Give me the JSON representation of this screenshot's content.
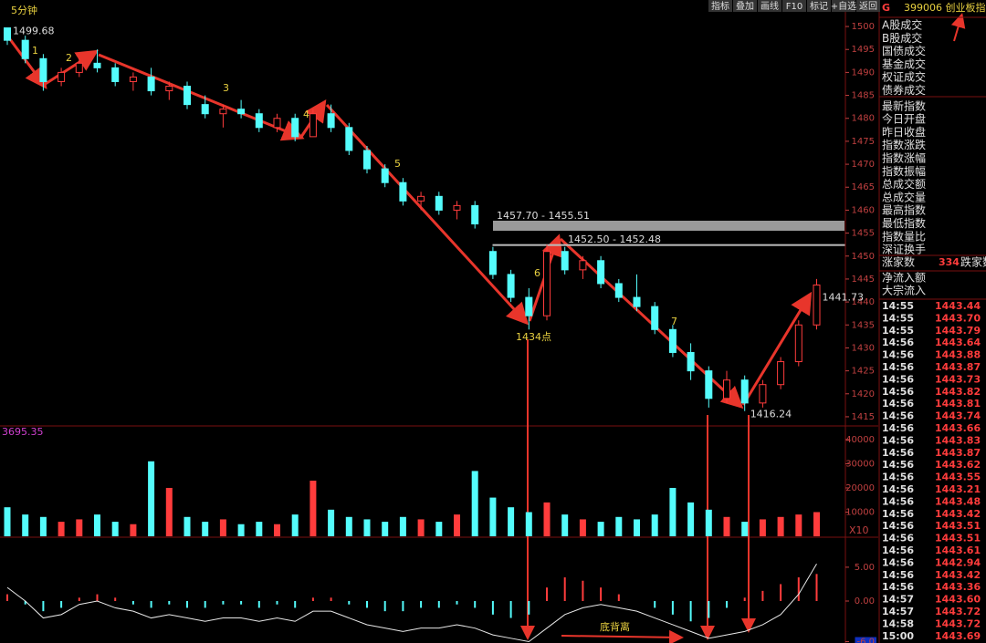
{
  "toolbar": [
    "指标",
    "叠加",
    "画线",
    "F10",
    "标记",
    "+自选",
    "返回"
  ],
  "chart_data": [
    {
      "type": "candlestick",
      "period": "5分钟",
      "open": [
        1499.7,
        1497,
        1493,
        1488,
        1490,
        1492,
        1491,
        1488,
        1489,
        1486,
        1487,
        1483,
        1481,
        1482,
        1481,
        1478,
        1480,
        1476,
        1481,
        1478,
        1473,
        1469,
        1466,
        1462,
        1463,
        1460,
        1461,
        1451,
        1446,
        1441,
        1437,
        1451,
        1447,
        1449,
        1444,
        1441,
        1439,
        1434,
        1429,
        1425,
        1419,
        1423,
        1418,
        1422,
        1427,
        1435
      ],
      "high": [
        1499.7,
        1498,
        1494,
        1491,
        1493,
        1495,
        1492,
        1490,
        1491,
        1488,
        1488,
        1485,
        1483,
        1484,
        1482,
        1481,
        1481,
        1482,
        1483,
        1479,
        1474,
        1470,
        1467,
        1464,
        1464,
        1462,
        1462,
        1452,
        1447,
        1443,
        1452.5,
        1452,
        1450,
        1450,
        1445,
        1446,
        1440,
        1435,
        1431,
        1426,
        1425,
        1424,
        1423,
        1428,
        1436,
        1445
      ],
      "low": [
        1496,
        1492,
        1486,
        1487,
        1489,
        1490,
        1487,
        1486,
        1485,
        1484,
        1482,
        1480,
        1478,
        1480,
        1477,
        1477,
        1475,
        1476,
        1477,
        1472,
        1468,
        1465,
        1461,
        1460,
        1459,
        1458,
        1456,
        1445,
        1440,
        1434,
        1436,
        1446,
        1445,
        1443,
        1440,
        1438,
        1433,
        1428,
        1423,
        1417,
        1418,
        1416.24,
        1417,
        1421,
        1426,
        1434
      ],
      "close": [
        1497,
        1493,
        1488,
        1490,
        1492,
        1491,
        1488,
        1489,
        1486,
        1487,
        1483,
        1481,
        1482,
        1481,
        1478,
        1480,
        1476,
        1481,
        1478,
        1473,
        1469,
        1466,
        1462,
        1463,
        1460,
        1461,
        1457,
        1446,
        1441,
        1437,
        1451,
        1447,
        1449,
        1444,
        1441,
        1439,
        1434,
        1429,
        1425,
        1419,
        1423,
        1418,
        1422,
        1427,
        1435,
        1443.7
      ],
      "up_color": "#ff3c3c",
      "down_color": "#54fcfc",
      "ylim": [
        1413.4,
        1501.8
      ],
      "yticks": [
        1415,
        1420,
        1425,
        1430,
        1435,
        1440,
        1445,
        1450,
        1455,
        1460,
        1465,
        1470,
        1475,
        1480,
        1485,
        1490,
        1495,
        1500
      ],
      "zones": [
        {
          "label": "1457.70 - 1455.51",
          "from": 1455.51,
          "to": 1457.7
        },
        {
          "label": "1452.50 - 1452.48",
          "from": 1452.48,
          "to": 1452.5
        }
      ],
      "point_labels": [
        {
          "label": "1499.68",
          "index": 0,
          "value": 1499.68
        },
        {
          "label": "1416.24",
          "index": 41,
          "value": 1416.24
        },
        {
          "label": "1441.73",
          "index": 45,
          "value": 1441.73
        }
      ]
    },
    {
      "type": "bar",
      "values": [
        12000,
        9000,
        8000,
        6000,
        7000,
        9000,
        6000,
        5000,
        31000,
        20000,
        8000,
        6000,
        7000,
        5000,
        6000,
        5000,
        9000,
        23000,
        11000,
        8000,
        7000,
        6000,
        8000,
        7000,
        6000,
        9000,
        27000,
        16000,
        12000,
        10000,
        14000,
        9000,
        7000,
        6000,
        8000,
        7000,
        9000,
        20000,
        14000,
        11000,
        8000,
        6000,
        7000,
        8000,
        9000,
        10000
      ],
      "ylim": [
        0,
        44500
      ],
      "yticks": [
        10000,
        20000,
        30000,
        40000
      ],
      "unit_label": "X10",
      "max_label": "3695.35"
    },
    {
      "type": "macd",
      "histogram": [
        1,
        -0.5,
        -1.5,
        -1,
        0.5,
        1,
        0.5,
        -0.5,
        -1,
        -0.5,
        -1,
        -1,
        -0.5,
        -0.5,
        -1,
        -0.5,
        -1,
        0.5,
        0.5,
        -0.5,
        -1,
        -1.5,
        -1.5,
        -1,
        -1,
        -0.5,
        -1,
        -2,
        -2.5,
        -2,
        2,
        3.5,
        3,
        2,
        1,
        0,
        -1,
        -2,
        -3,
        -2.5,
        -1,
        0.5,
        1.5,
        2.5,
        3.5,
        4
      ],
      "dif": [
        2,
        0,
        -2.5,
        -2,
        -0.5,
        0,
        -1,
        -1.5,
        -2.5,
        -2,
        -2.5,
        -3,
        -2.5,
        -2.5,
        -3,
        -2.5,
        -3,
        -1.5,
        -1.5,
        -2.5,
        -3.5,
        -4,
        -4.5,
        -4,
        -4,
        -3.5,
        -4,
        -5,
        -5.5,
        -6,
        -4,
        -2,
        -1,
        -0.5,
        -1,
        -1.5,
        -2.5,
        -3.5,
        -4.5,
        -5.5,
        -5,
        -4.5,
        -3.5,
        -2,
        1,
        5.5
      ],
      "dif_color": "#e8e8e8",
      "ylim": [
        -6.2,
        9.3
      ],
      "yticks": [
        {
          "value": -6,
          "label": "-6.0"
        },
        {
          "value": 0,
          "label": "0.00"
        },
        {
          "value": 5,
          "label": "5.00"
        }
      ]
    }
  ],
  "annotations": {
    "waves": [
      "1",
      "2",
      "3",
      "4",
      "5",
      "6",
      "7"
    ],
    "low_point": "1434点",
    "divergence": "底背离"
  },
  "quote_panel": {
    "code": "G",
    "name": "399006 创业板指",
    "fields": [
      "A股成交",
      "B股成交",
      "国债成交",
      "基金成交",
      "权证成交",
      "债券成交",
      "最新指数",
      "今日开盘",
      "昨日收盘",
      "指数涨跌",
      "指数涨幅",
      "指数振幅",
      "总成交额",
      "总成交量",
      "最高指数",
      "最低指数",
      "指数量比",
      "深证换手"
    ],
    "up_count_label": "涨家数",
    "up_count": "334",
    "down_count_label": "跌家数",
    "flows": [
      "净流入额",
      "大宗流入"
    ]
  },
  "ticks_table": {
    "rows": [
      [
        "14:55",
        "1443.44"
      ],
      [
        "14:55",
        "1443.70"
      ],
      [
        "14:55",
        "1443.79"
      ],
      [
        "14:56",
        "1443.64"
      ],
      [
        "14:56",
        "1443.88"
      ],
      [
        "14:56",
        "1443.87"
      ],
      [
        "14:56",
        "1443.73"
      ],
      [
        "14:56",
        "1443.82"
      ],
      [
        "14:56",
        "1443.81"
      ],
      [
        "14:56",
        "1443.74"
      ],
      [
        "14:56",
        "1443.66"
      ],
      [
        "14:56",
        "1443.83"
      ],
      [
        "14:56",
        "1443.87"
      ],
      [
        "14:56",
        "1443.62"
      ],
      [
        "14:56",
        "1443.55"
      ],
      [
        "14:56",
        "1443.21"
      ],
      [
        "14:56",
        "1443.48"
      ],
      [
        "14:56",
        "1443.42"
      ],
      [
        "14:56",
        "1443.51"
      ],
      [
        "14:56",
        "1443.51"
      ],
      [
        "14:56",
        "1443.61"
      ],
      [
        "14:56",
        "1442.94"
      ],
      [
        "14:56",
        "1443.42"
      ],
      [
        "14:56",
        "1443.36"
      ],
      [
        "14:57",
        "1443.60"
      ],
      [
        "14:57",
        "1443.72"
      ],
      [
        "14:58",
        "1443.72"
      ],
      [
        "15:00",
        "1443.69"
      ]
    ]
  }
}
